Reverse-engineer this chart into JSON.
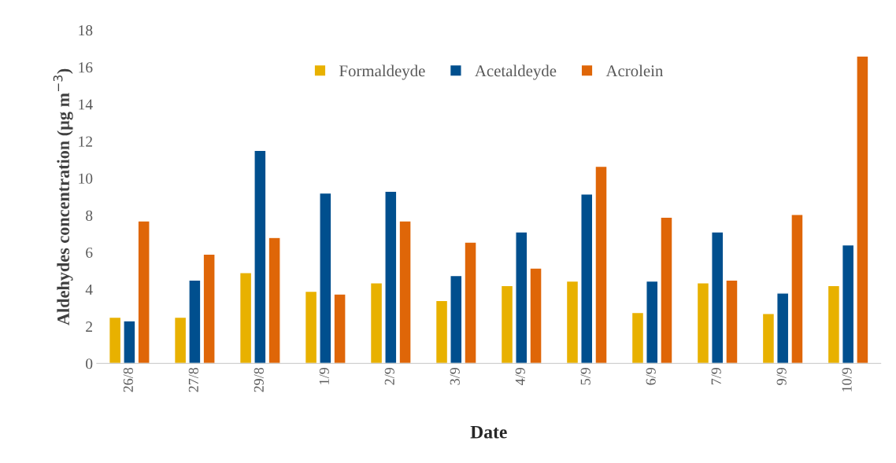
{
  "chart_data": {
    "type": "bar",
    "xlabel": "Date",
    "ylabel": "Aldehydes concentration (µg m$^{−3}$)",
    "categories": [
      "26/8",
      "27/8",
      "29/8",
      "1/9",
      "2/9",
      "3/9",
      "4/9",
      "5/9",
      "6/9",
      "7/9",
      "9/9",
      "10/9"
    ],
    "series": [
      {
        "name": "Formaldeyde",
        "color": "#e8b100",
        "values": [
          2.5,
          2.5,
          4.9,
          3.9,
          4.35,
          3.4,
          4.2,
          4.45,
          2.75,
          4.35,
          2.7,
          4.2
        ]
      },
      {
        "name": "Acetaldeyde",
        "color": "#004f8e",
        "values": [
          2.3,
          4.5,
          11.5,
          9.2,
          9.3,
          4.75,
          7.1,
          9.15,
          4.45,
          7.1,
          3.8,
          6.4
        ]
      },
      {
        "name": "Acrolein",
        "color": "#df6608",
        "values": [
          7.7,
          5.9,
          6.8,
          3.75,
          7.7,
          6.55,
          5.15,
          10.65,
          7.9,
          4.5,
          8.05,
          16.6
        ]
      }
    ],
    "ylim": [
      0,
      18
    ],
    "yticks": [
      0,
      2,
      4,
      6,
      8,
      10,
      12,
      14,
      16,
      18
    ],
    "grid": false,
    "legend": "top"
  }
}
